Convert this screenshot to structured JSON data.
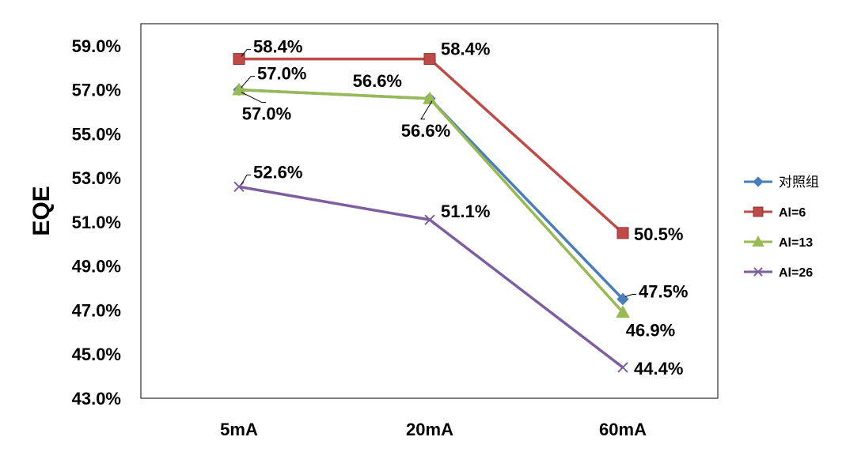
{
  "chart_data": {
    "type": "line",
    "title": "",
    "xlabel": "",
    "ylabel": "EQE",
    "categories": [
      "5mA",
      "20mA",
      "60mA"
    ],
    "ylim": [
      43.0,
      60.0
    ],
    "yticks": [
      "59.0%",
      "57.0%",
      "55.0%",
      "53.0%",
      "51.0%",
      "49.0%",
      "47.0%",
      "45.0%",
      "43.0%"
    ],
    "ytick_values": [
      59.0,
      57.0,
      55.0,
      53.0,
      51.0,
      49.0,
      47.0,
      45.0,
      43.0
    ],
    "grid": false,
    "legend_position": "right",
    "series": [
      {
        "name": "对照组",
        "color": "#4a7ebb",
        "marker": "diamond",
        "values": [
          57.0,
          56.6,
          47.5
        ],
        "labels": [
          "57.0%",
          "56.6%",
          "47.5%"
        ]
      },
      {
        "name": "Al=6",
        "color": "#be4b48",
        "marker": "square",
        "values": [
          58.4,
          58.4,
          50.5
        ],
        "labels": [
          "58.4%",
          "58.4%",
          "50.5%"
        ]
      },
      {
        "name": "Al=13",
        "color": "#98b954",
        "marker": "triangle",
        "values": [
          57.0,
          56.6,
          46.9
        ],
        "labels": [
          "57.0%",
          "56.6%",
          "46.9%"
        ]
      },
      {
        "name": "Al=26",
        "color": "#7d5fa0",
        "marker": "x",
        "values": [
          52.6,
          51.1,
          44.4
        ],
        "labels": [
          "52.6%",
          "51.1%",
          "44.4%"
        ]
      }
    ]
  }
}
